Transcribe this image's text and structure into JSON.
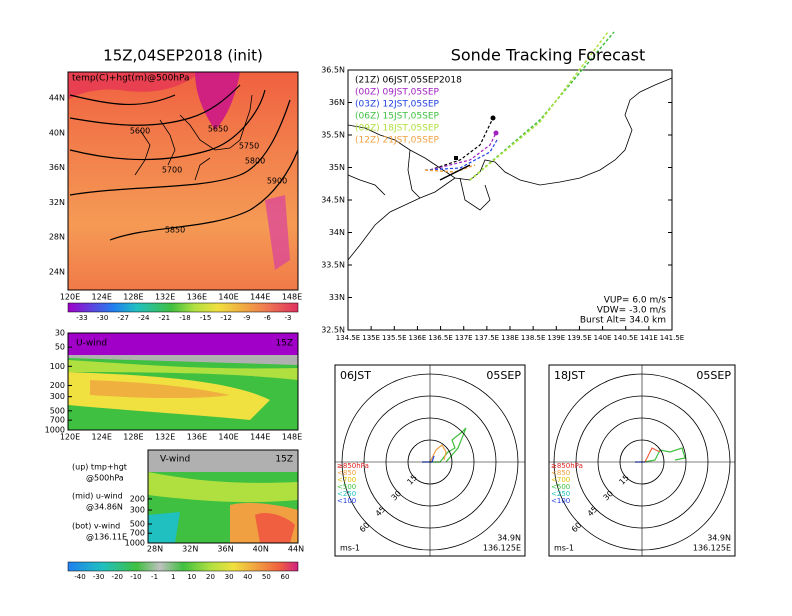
{
  "map_panel": {
    "title": "15Z,04SEP2018 (init)",
    "label": "temp(C)+hgt(m)@500hPa",
    "lat_labels": [
      "44N",
      "40N",
      "36N",
      "32N",
      "28N",
      "24N"
    ],
    "lon_labels": [
      "120E",
      "124E",
      "128E",
      "132E",
      "136E",
      "140E",
      "144E",
      "148E"
    ],
    "contour_labels": [
      5600,
      5650,
      5750,
      5800,
      5700,
      5900,
      5850
    ],
    "colorbar_labels": [
      -33,
      -30,
      -27,
      -24,
      -21,
      -18,
      -15,
      -12,
      -9,
      -6,
      -3
    ]
  },
  "track_panel": {
    "title": "Sonde Tracking Forecast",
    "lat_labels": [
      "36.5N",
      "36N",
      "35.5N",
      "35N",
      "34.5N",
      "34N",
      "33.5N",
      "33N",
      "32.5N"
    ],
    "lon_labels": [
      "134.5E",
      "135E",
      "135.5E",
      "136E",
      "136.5E",
      "137E",
      "137.5E",
      "138E",
      "138.5E",
      "139E",
      "139.5E",
      "140E",
      "140.5E",
      "141E",
      "141.5E"
    ],
    "legend": [
      "(21Z) 06JST,05SEP2018",
      "(00Z) 09JST,05SEP",
      "(03Z) 12JST,05SEP",
      "(06Z) 15JST,05SEP",
      "(09Z) 18JST,05SEP",
      "(12Z) 21JST,05SEP"
    ],
    "info": [
      "VUP= 6.0 m/s",
      "VDW= -3.0 m/s",
      "Burst Alt= 34.0 km"
    ]
  },
  "u_panel": {
    "title": "U-wind",
    "time": "15Z",
    "ylim": [
      30,
      1000
    ],
    "pressure_labels": [
      30,
      50,
      100,
      200,
      300,
      500,
      700,
      1000
    ],
    "lon_labels": [
      "120E",
      "124E",
      "128E",
      "132E",
      "136E",
      "140E",
      "144E",
      "148E"
    ]
  },
  "v_panel": {
    "title": "V-wind",
    "time": "15Z",
    "ylim": [
      30,
      1000
    ],
    "pressure_labels": [
      200,
      300,
      500,
      700,
      1000
    ],
    "lat_labels": [
      "28N",
      "32N",
      "36N",
      "40N",
      "44N"
    ],
    "colorbar_labels": [
      -40,
      -30,
      -20,
      -10,
      -1,
      1,
      10,
      20,
      30,
      40,
      50,
      60
    ]
  },
  "notes": [
    "(up) tmp+hgt",
    "@500hPa",
    "(mid) u-wind",
    "@34.86N",
    "(bot) v-wind",
    "@136.11E"
  ],
  "hodographs": [
    {
      "time": "06JST",
      "date": "05SEP",
      "legend": [
        "≥850hPa",
        "<850",
        "<700",
        "<500",
        "<250",
        "<100"
      ],
      "ring_labels": [
        15,
        30,
        45,
        60
      ],
      "lat": "34.9N",
      "lon": "136.125E",
      "unit": "ms-1"
    },
    {
      "time": "18JST",
      "date": "05SEP",
      "legend": [
        "≥850hPa",
        "<850",
        "<700",
        "<500",
        "<250",
        "<100"
      ],
      "ring_labels": [
        15,
        30,
        45,
        60
      ],
      "lat": "34.9N",
      "lon": "136.125E",
      "unit": "ms-1"
    }
  ]
}
